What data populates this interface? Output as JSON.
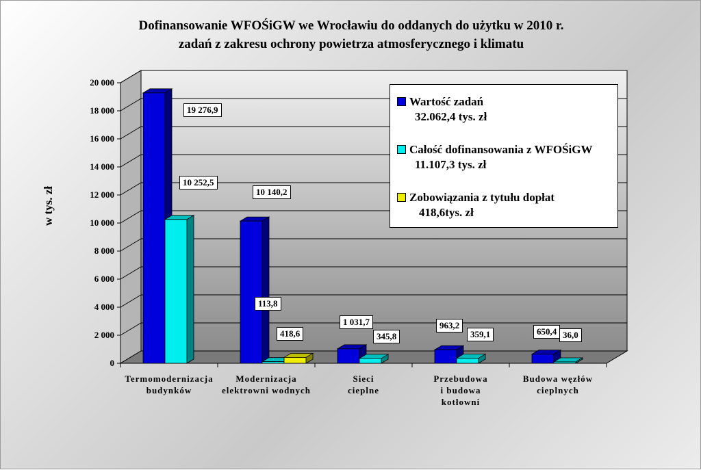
{
  "chart_data": {
    "type": "bar",
    "title": [
      "Dofinansowanie WFOŚiGW we Wrocławiu do oddanych do użytku w 2010 r.",
      "zadań z zakresu ochrony powietrza atmosferycznego i klimatu"
    ],
    "ylabel": "w tys. zł",
    "ylim": [
      0,
      20000
    ],
    "yticks": [
      "0",
      "2 000",
      "4 000",
      "6 000",
      "8 000",
      "10 000",
      "12 000",
      "14 000",
      "16 000",
      "18 000",
      "20 000"
    ],
    "grid": true,
    "legend_position": "top-right",
    "categories": [
      [
        "Termomodernizacja",
        "budynków"
      ],
      [
        "Modernizacja",
        "elektrowni wodnych"
      ],
      [
        "Sieci",
        "cieplne"
      ],
      [
        "Przebudowa",
        "i budowa",
        "kotłowni"
      ],
      [
        "Budowa węzłów",
        "cieplnych"
      ]
    ],
    "series": [
      {
        "name": "Wartość zadań",
        "legend_detail": "32.062,4 tys. zł",
        "color": "#0000dd",
        "values": [
          19276.9,
          10140.2,
          1031.7,
          963.2,
          650.4
        ],
        "labels": [
          "19 276,9",
          "10 140,2",
          "1 031,7",
          "963,2",
          "650,4"
        ]
      },
      {
        "name": "Całość dofinansowania z WFOŚiGW",
        "legend_detail": "11.107,3 tys. zł",
        "color": "#00eeee",
        "values": [
          10252.5,
          113.8,
          345.8,
          359.1,
          36.0
        ],
        "labels": [
          "10 252,5",
          "113,8",
          "345,8",
          "359,1",
          "36,0"
        ]
      },
      {
        "name": "Zobowiązania z tytułu dopłat",
        "legend_detail": "418,6tys. zł",
        "color": "#eeee00",
        "values": [
          null,
          418.6,
          null,
          null,
          null
        ],
        "labels": [
          null,
          "418,6",
          null,
          null,
          null
        ]
      }
    ]
  }
}
